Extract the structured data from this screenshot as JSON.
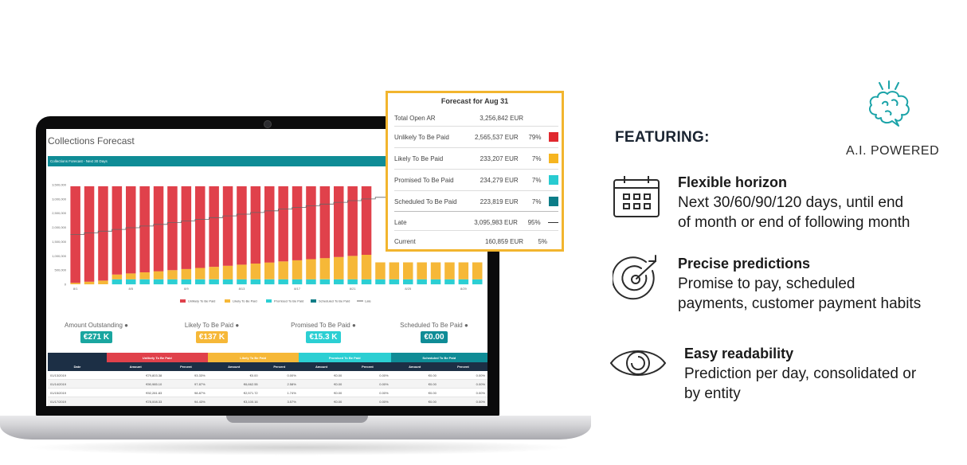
{
  "screen": {
    "title": "Collections Forecast",
    "subheader": "Collections Forecast - Next 30 Days"
  },
  "chart_data": {
    "type": "bar",
    "stacked": true,
    "yticks": [
      "3,500,000",
      "3,000,000",
      "2,500,000",
      "2,000,000",
      "1,500,000",
      "1,000,000",
      "500,000",
      "0"
    ],
    "xticks": [
      "8/1",
      "8/5",
      "8/9",
      "8/13",
      "8/17",
      "8/21",
      "8/25",
      "8/29"
    ],
    "legend": [
      "Unlikely To Be Paid",
      "Likely To Be Paid",
      "Promised To Be Paid",
      "Scheduled To Be Paid",
      "Late"
    ],
    "colors": {
      "unlikely": "#e0414b",
      "likely": "#f6b838",
      "promised": "#2ccfd3",
      "scheduled": "#0f7d87",
      "late": "#666666"
    },
    "ylim": [
      0,
      3500000
    ]
  },
  "kpis": [
    {
      "label": "Amount Outstanding",
      "value": "€271 K",
      "color": "#1aa6a0"
    },
    {
      "label": "Likely To Be Paid",
      "value": "€137 K",
      "color": "#f6b838"
    },
    {
      "label": "Promised To Be Paid",
      "value": "€15.3 K",
      "color": "#2ccfd3"
    },
    {
      "label": "Scheduled To Be Paid",
      "value": "€0.00",
      "color": "#0f8c96"
    }
  ],
  "table": {
    "groups": [
      "Unlikely To Be Paid",
      "Likely To Be Paid",
      "Promised To Be Paid",
      "Scheduled To Be Paid"
    ],
    "columns": [
      "Date",
      "Amount",
      "Percent",
      "Amount",
      "Percent",
      "Amount",
      "Percent",
      "Amount",
      "Percent"
    ],
    "rows": [
      [
        "01/13/2019",
        "€79,803.38",
        "93.33%",
        "€0.00",
        "0.00%",
        "€0.00",
        "0.00%",
        "€0.00",
        "0.00%"
      ],
      [
        "01/14/2019",
        "€90,985.10",
        "97.87%",
        "€6,662.55",
        "2.58%",
        "€0.00",
        "0.00%",
        "€0.00",
        "0.00%"
      ],
      [
        "01/15/2019",
        "€92,281.83",
        "98.87%",
        "€2,571.72",
        "1.74%",
        "€0.00",
        "0.00%",
        "€0.00",
        "0.00%"
      ],
      [
        "01/17/2019",
        "€78,008.33",
        "94.43%",
        "€3,100.16",
        "3.57%",
        "€0.00",
        "0.00%",
        "€0.00",
        "0.00%"
      ]
    ]
  },
  "popup": {
    "title": "Forecast for Aug 31",
    "rows": [
      {
        "label": "Total Open AR",
        "amount": "3,256,842 EUR",
        "percent": "",
        "swatch": ""
      },
      {
        "label": "Unlikely To Be Paid",
        "amount": "2,565,537 EUR",
        "percent": "79%",
        "swatch": "#e0282e"
      },
      {
        "label": "Likely To Be Paid",
        "amount": "233,207 EUR",
        "percent": "7%",
        "swatch": "#f6b520"
      },
      {
        "label": "Promised To Be Paid",
        "amount": "234,279 EUR",
        "percent": "7%",
        "swatch": "#28cbd1"
      },
      {
        "label": "Scheduled To Be Paid",
        "amount": "223,819 EUR",
        "percent": "7%",
        "swatch": "#0c7d88"
      },
      {
        "label": "Late",
        "amount": "3,095,983 EUR",
        "percent": "95%",
        "swatch": "line"
      },
      {
        "label": "Current",
        "amount": "160,859 EUR",
        "percent": "5%",
        "swatch": ""
      }
    ]
  },
  "featuring": "FEATURING:",
  "ai_label": "A.I. POWERED",
  "features": [
    {
      "icon": "calendar-icon",
      "title": "Flexible horizon",
      "desc1": "Next 30/60/90/120 days, until end",
      "desc2": "of month or end of following month"
    },
    {
      "icon": "target-icon",
      "title": "Precise predictions",
      "desc1": "Promise to pay, scheduled",
      "desc2": "payments, customer payment habits"
    },
    {
      "icon": "eye-icon",
      "title": "Easy readability",
      "desc1": "Prediction per day, consolidated or",
      "desc2": "by entity"
    }
  ],
  "colors": {
    "accent": "#1aa3a8",
    "popup_border": "#f2b52e",
    "icon_stroke": "#2b2b2b"
  }
}
